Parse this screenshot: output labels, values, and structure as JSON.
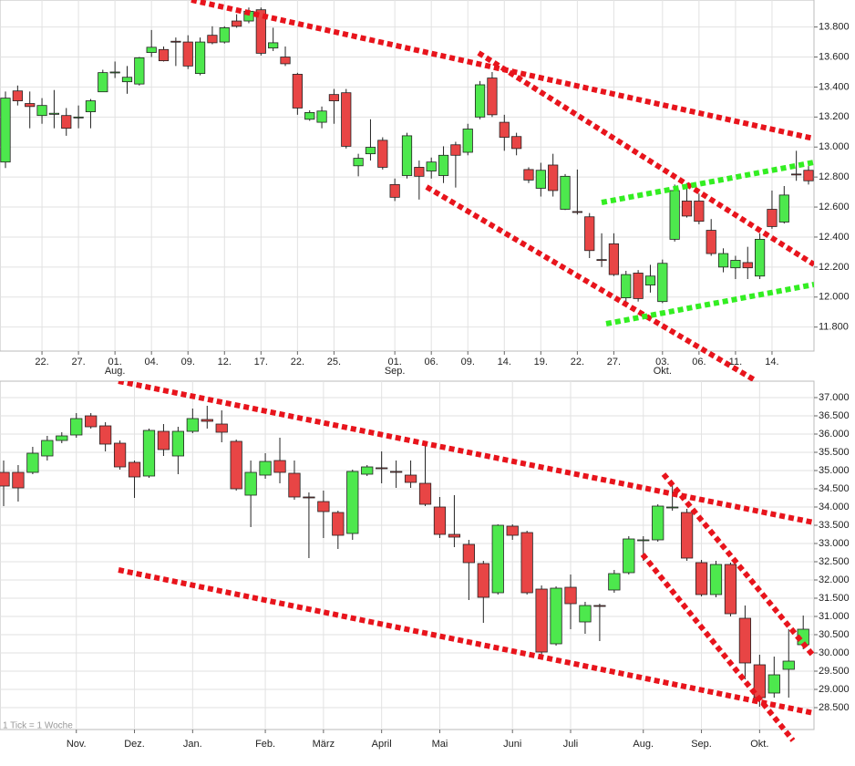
{
  "chart_data": [
    {
      "type": "candlestick",
      "up_color": "#4de84d",
      "down_color": "#e84545",
      "x": [
        0,
        1,
        2,
        3,
        4,
        5,
        6,
        7,
        8,
        9,
        10,
        11,
        12,
        13,
        14,
        15,
        16,
        17,
        18,
        19,
        20,
        21,
        22,
        23,
        24,
        25,
        26,
        27,
        28,
        29,
        30,
        31,
        32,
        33,
        34,
        35,
        36,
        37,
        38,
        39,
        40,
        41,
        42,
        43,
        44,
        45,
        46,
        47,
        48,
        49,
        50,
        51,
        52,
        53,
        54,
        55,
        56,
        57,
        58,
        59,
        60,
        61,
        62,
        63,
        64,
        65,
        66
      ],
      "open": [
        12900,
        13374,
        13290,
        13210,
        13218,
        13210,
        13200,
        13235,
        13368,
        13496,
        13435,
        13420,
        13630,
        13650,
        13705,
        13700,
        13490,
        13745,
        13700,
        13840,
        13840,
        13915,
        13660,
        13600,
        13485,
        13185,
        13165,
        13350,
        13362,
        12875,
        12955,
        13045,
        12750,
        12810,
        12865,
        12840,
        12810,
        13015,
        12965,
        13200,
        13460,
        13165,
        13070,
        12850,
        12725,
        12880,
        12585,
        12570,
        12535,
        12250,
        12355,
        11995,
        12160,
        12080,
        11970,
        12385,
        12640,
        12640,
        12445,
        12200,
        12195,
        12230,
        12140,
        12585,
        12500,
        12820,
        12845
      ],
      "high": [
        13370,
        13410,
        13370,
        13326,
        13380,
        13260,
        13277,
        13320,
        13515,
        13570,
        13540,
        13600,
        13780,
        13670,
        13730,
        13745,
        13730,
        13805,
        13805,
        13885,
        13930,
        13930,
        13795,
        13670,
        13495,
        13245,
        13270,
        13387,
        13387,
        12955,
        13185,
        13065,
        12790,
        13095,
        12910,
        12930,
        13005,
        13035,
        13155,
        13440,
        13500,
        13215,
        13095,
        12865,
        12895,
        12955,
        12820,
        12850,
        12560,
        12425,
        12425,
        12175,
        12180,
        12215,
        12250,
        12750,
        12760,
        12690,
        12520,
        12325,
        12275,
        12335,
        12425,
        12710,
        12740,
        12975,
        12880
      ],
      "low": [
        12860,
        13277,
        13125,
        13155,
        13125,
        13075,
        13125,
        13125,
        13368,
        13460,
        13355,
        13410,
        13600,
        13570,
        13540,
        13520,
        13478,
        13685,
        13690,
        13795,
        13825,
        13610,
        13640,
        13540,
        13215,
        13175,
        13125,
        13155,
        12990,
        12805,
        12910,
        12850,
        12640,
        12790,
        12650,
        12790,
        12760,
        12730,
        12945,
        13185,
        13200,
        12975,
        12945,
        12760,
        12670,
        12670,
        12580,
        12550,
        12260,
        12200,
        12140,
        11950,
        11970,
        12030,
        11960,
        12370,
        12530,
        12485,
        12275,
        12165,
        12120,
        12120,
        12120,
        12455,
        12490,
        12775,
        12750
      ],
      "close": [
        13326,
        13308,
        13270,
        13277,
        13225,
        13125,
        13200,
        13308,
        13496,
        13500,
        13465,
        13595,
        13665,
        13575,
        13700,
        13540,
        13700,
        13695,
        13795,
        13805,
        13905,
        13625,
        13695,
        13555,
        13260,
        13230,
        13240,
        13308,
        13005,
        12925,
        12998,
        12865,
        12665,
        13075,
        12805,
        12900,
        12945,
        12945,
        13120,
        13415,
        13215,
        13065,
        12990,
        12780,
        12845,
        12710,
        12805,
        12565,
        12310,
        12245,
        12150,
        12150,
        11990,
        12140,
        12225,
        12710,
        12540,
        12505,
        12290,
        12290,
        12245,
        12195,
        12385,
        12470,
        12680,
        12815,
        12775
      ],
      "xlim": [
        -0.45,
        66.45
      ],
      "ylim": [
        11640,
        13980
      ],
      "yticks": [
        {
          "value": 11800,
          "label": "11.800"
        },
        {
          "value": 12000,
          "label": "12.000"
        },
        {
          "value": 12200,
          "label": "12.200"
        },
        {
          "value": 12400,
          "label": "12.400"
        },
        {
          "value": 12600,
          "label": "12.600"
        },
        {
          "value": 12800,
          "label": "12.800"
        },
        {
          "value": 13000,
          "label": "13.000"
        },
        {
          "value": 13200,
          "label": "13.200"
        },
        {
          "value": 13400,
          "label": "13.400"
        },
        {
          "value": 13600,
          "label": "13.600"
        },
        {
          "value": 13800,
          "label": "13.800"
        }
      ],
      "xticks": [
        {
          "value": 3,
          "label": "22."
        },
        {
          "value": 6,
          "label": "27."
        },
        {
          "value": 9,
          "label": "01."
        },
        {
          "value": 12,
          "label": "04."
        },
        {
          "value": 15,
          "label": "09."
        },
        {
          "value": 18,
          "label": "12."
        },
        {
          "value": 21,
          "label": "17."
        },
        {
          "value": 24,
          "label": "22."
        },
        {
          "value": 27,
          "label": "25."
        },
        {
          "value": 32,
          "label": "01."
        },
        {
          "value": 35,
          "label": "06."
        },
        {
          "value": 38,
          "label": "09."
        },
        {
          "value": 41,
          "label": "14."
        },
        {
          "value": 44,
          "label": "19."
        },
        {
          "value": 47,
          "label": "22."
        },
        {
          "value": 50,
          "label": "27."
        },
        {
          "value": 54,
          "label": "03."
        },
        {
          "value": 57,
          "label": "06."
        },
        {
          "value": 60,
          "label": "11."
        },
        {
          "value": 63,
          "label": "14."
        }
      ],
      "month_labels": [
        {
          "value": 9,
          "label": "Aug."
        },
        {
          "value": 32,
          "label": "Sep."
        },
        {
          "value": 54,
          "label": "Okt."
        }
      ],
      "grid": true
    },
    {
      "type": "candlestick",
      "up_color": "#4de84d",
      "down_color": "#e84545",
      "annotation": "1 Tick = 1 Woche",
      "x": [
        0,
        1,
        2,
        3,
        4,
        5,
        6,
        7,
        8,
        9,
        10,
        11,
        12,
        13,
        14,
        15,
        16,
        17,
        18,
        19,
        20,
        21,
        22,
        23,
        24,
        25,
        26,
        27,
        28,
        29,
        30,
        31,
        32,
        33,
        34,
        35,
        36,
        37,
        38,
        39,
        40,
        41,
        42,
        43,
        44,
        45,
        46,
        47,
        48,
        49,
        50,
        51,
        52,
        53,
        54,
        55
      ],
      "open": [
        34950,
        34950,
        34950,
        35400,
        35825,
        35975,
        36500,
        36225,
        35750,
        35225,
        34850,
        36075,
        35400,
        36075,
        36400,
        36275,
        35800,
        34325,
        34875,
        35275,
        34925,
        34275,
        34150,
        33850,
        33275,
        34900,
        35075,
        34975,
        34875,
        34650,
        34000,
        33250,
        32975,
        32450,
        31650,
        33475,
        33300,
        31750,
        30250,
        31800,
        30850,
        31300,
        31725,
        32200,
        33075,
        33100,
        33975,
        33850,
        32475,
        31600,
        32425,
        30950,
        29675,
        28900,
        29550,
        30225
      ],
      "high": [
        35275,
        35150,
        35650,
        35950,
        36050,
        36575,
        36575,
        36325,
        35825,
        35275,
        36150,
        36275,
        36200,
        36700,
        36775,
        36650,
        35850,
        35275,
        35475,
        35900,
        35275,
        34400,
        34450,
        33900,
        35025,
        35150,
        35525,
        35275,
        35275,
        35775,
        34275,
        34325,
        33100,
        32525,
        33525,
        33525,
        33350,
        31850,
        31825,
        32150,
        31400,
        31350,
        32275,
        33200,
        33200,
        34075,
        34650,
        33950,
        32550,
        32525,
        32475,
        31300,
        29950,
        29900,
        30650,
        31025
      ],
      "low": [
        34025,
        34150,
        34900,
        35275,
        35750,
        35900,
        36150,
        35525,
        35025,
        34250,
        34800,
        35400,
        34900,
        36025,
        36150,
        35775,
        34450,
        33450,
        34775,
        34650,
        34200,
        32600,
        33150,
        32850,
        33100,
        34850,
        34650,
        34525,
        34525,
        34025,
        33150,
        32900,
        31450,
        30825,
        31600,
        33100,
        31600,
        29950,
        30200,
        30650,
        30525,
        30325,
        31650,
        32150,
        32525,
        33050,
        33900,
        32525,
        31550,
        31525,
        31000,
        29275,
        28525,
        28775,
        28775,
        30100
      ],
      "close": [
        34575,
        34525,
        35475,
        35825,
        35950,
        36425,
        36200,
        35725,
        35100,
        34825,
        36100,
        35575,
        36075,
        36425,
        36350,
        36050,
        34500,
        34950,
        35250,
        34950,
        34275,
        34250,
        33875,
        33225,
        34975,
        35100,
        35050,
        34950,
        34675,
        34075,
        33250,
        33175,
        32475,
        31525,
        33500,
        33225,
        31650,
        30025,
        31775,
        31350,
        31300,
        31275,
        32175,
        33125,
        33100,
        34025,
        34000,
        32600,
        31600,
        32425,
        31075,
        29725,
        28775,
        29400,
        29775,
        30650
      ],
      "xlim": [
        -0.25,
        55.74
      ],
      "ylim": [
        27900,
        37450
      ],
      "yticks": [
        {
          "value": 28500,
          "label": "28.500"
        },
        {
          "value": 29000,
          "label": "29.000"
        },
        {
          "value": 29500,
          "label": "29.500"
        },
        {
          "value": 30000,
          "label": "30.000"
        },
        {
          "value": 30500,
          "label": "30.500"
        },
        {
          "value": 31000,
          "label": "31.000"
        },
        {
          "value": 31500,
          "label": "31.500"
        },
        {
          "value": 32000,
          "label": "32.000"
        },
        {
          "value": 32500,
          "label": "32.500"
        },
        {
          "value": 33000,
          "label": "33.000"
        },
        {
          "value": 33500,
          "label": "33.500"
        },
        {
          "value": 34000,
          "label": "34.000"
        },
        {
          "value": 34500,
          "label": "34.500"
        },
        {
          "value": 35000,
          "label": "35.000"
        },
        {
          "value": 35500,
          "label": "35.500"
        },
        {
          "value": 36000,
          "label": "36.000"
        },
        {
          "value": 36500,
          "label": "36.500"
        },
        {
          "value": 37000,
          "label": "37.000"
        }
      ],
      "xticks": [
        {
          "value": 5,
          "label": "Nov."
        },
        {
          "value": 9,
          "label": "Dez."
        },
        {
          "value": 13,
          "label": "Jan."
        },
        {
          "value": 18,
          "label": "Feb."
        },
        {
          "value": 22,
          "label": "März"
        },
        {
          "value": 26,
          "label": "April"
        },
        {
          "value": 30,
          "label": "Mai"
        },
        {
          "value": 35,
          "label": "Juni"
        },
        {
          "value": 39,
          "label": "Juli"
        },
        {
          "value": 44,
          "label": "Aug."
        },
        {
          "value": 48,
          "label": "Sep."
        },
        {
          "value": 52,
          "label": "Okt."
        }
      ],
      "grid": true
    }
  ]
}
